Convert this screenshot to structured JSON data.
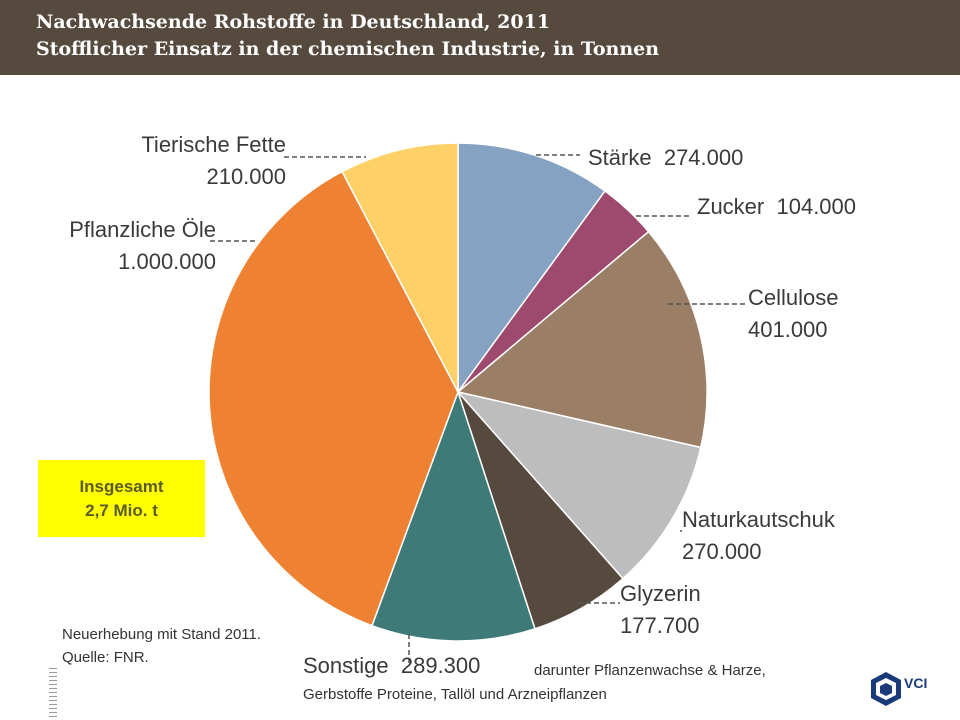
{
  "header": {
    "title": "Nachwachsende Rohstoffe in Deutschland, 2011",
    "subtitle": "Stofflicher Einsatz in der chemischen Industrie, in Tonnen"
  },
  "chart_data": {
    "type": "pie",
    "title": "Nachwachsende Rohstoffe in Deutschland, 2011",
    "subtitle": "Stofflicher Einsatz in der chemischen Industrie, in Tonnen",
    "start": "12 o'clock, clockwise",
    "slices": [
      {
        "name": "Stärke",
        "value": 274000,
        "value_label": "274.000",
        "color": "#86a2c2"
      },
      {
        "name": "Zucker",
        "value": 104000,
        "value_label": "104.000",
        "color": "#9e4a6e"
      },
      {
        "name": "Cellulose",
        "value": 401000,
        "value_label": "401.000",
        "color": "#9a7e66"
      },
      {
        "name": "Naturkautschuk",
        "value": 270000,
        "value_label": "270.000",
        "color": "#bdbdbd"
      },
      {
        "name": "Glyzerin",
        "value": 177700,
        "value_label": "177.700",
        "color": "#564a3f"
      },
      {
        "name": "Sonstige",
        "value": 289300,
        "value_label": "289.300",
        "color": "#3d7a78"
      },
      {
        "name": "Pflanzliche Öle",
        "value": 1000000,
        "value_label": "1.000.000",
        "color": "#ef8133"
      },
      {
        "name": "Tierische Fette",
        "value": 210000,
        "value_label": "210.000",
        "color": "#fdd068"
      }
    ]
  },
  "annotations": {
    "total_line1": "Insgesamt",
    "total_line2": "2,7 Mio. t",
    "sonstige_note1": "darunter Pflanzenwachse & Harze,",
    "sonstige_note2": "Gerbstoffe Proteine, Tallöl und Arzneipflanzen",
    "note_line1": "Neuerhebung mit Stand 2011.",
    "note_line2": "Quelle: FNR."
  },
  "logo": {
    "text": "VCI"
  }
}
